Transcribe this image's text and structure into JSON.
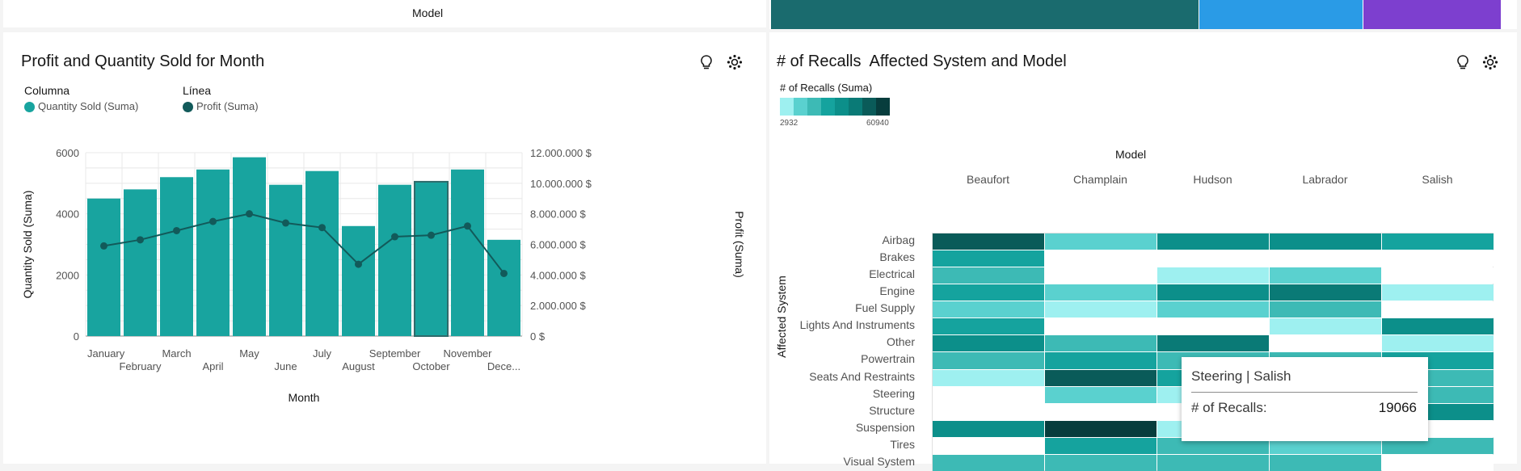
{
  "top": {
    "model_axis_label": "Model",
    "strip_colors": [
      "#1a6b6e",
      "#2a9be6",
      "#7d3fcf"
    ]
  },
  "left_panel": {
    "title": "Profit and Quantity Sold for Month",
    "icons": [
      "lightbulb-icon",
      "settings-icon"
    ],
    "legend": {
      "column_heading": "Columna",
      "column_item": "Quantity Sold (Suma)",
      "line_heading": "Línea",
      "line_item": "Profit (Suma)"
    },
    "colors": {
      "bar": "#18a49f",
      "line": "#125a5a",
      "selected_bar_outline": "#2e6b6b"
    }
  },
  "chart_data": [
    {
      "type": "bar+line",
      "title": "Profit and Quantity Sold for Month",
      "xlabel": "Month",
      "ylabel": "Quantity Sold (Suma)",
      "y2label": "Profit (Suma)",
      "categories": [
        "January",
        "February",
        "March",
        "April",
        "May",
        "June",
        "July",
        "August",
        "September",
        "October",
        "November",
        "Dece..."
      ],
      "ylim": [
        0,
        6000
      ],
      "y_ticks": [
        "0",
        "2000",
        "4000",
        "6000"
      ],
      "y2lim": [
        0,
        12000000
      ],
      "y2_ticks": [
        "0 $",
        "2.000.000 $",
        "4.000.000 $",
        "6.000.000 $",
        "8.000.000 $",
        "10.000.000 $",
        "12.000.000 $"
      ],
      "grid": true,
      "series": [
        {
          "name": "Quantity Sold (Suma)",
          "type": "bar",
          "values": [
            4500,
            4800,
            5200,
            5450,
            5850,
            4950,
            5400,
            3600,
            4950,
            5050,
            5450,
            3150
          ]
        },
        {
          "name": "Profit (Suma)",
          "type": "line",
          "values": [
            5900000,
            6300000,
            6900000,
            7500000,
            8000000,
            7400000,
            7100000,
            4700000,
            6500000,
            6600000,
            7200000,
            4100000
          ]
        }
      ],
      "selected_category": "October"
    },
    {
      "type": "heatmap",
      "title": "# of Recalls  Affected System and Model",
      "xlabel": "Model",
      "ylabel": "Affected System",
      "x": [
        "Beaufort",
        "Champlain",
        "Hudson",
        "Labrador",
        "Salish"
      ],
      "y": [
        "Airbag",
        "Brakes",
        "Electrical",
        "Engine",
        "Fuel Supply",
        "Lights And Instruments",
        "Other",
        "Powertrain",
        "Seats And Restraints",
        "Steering",
        "Structure",
        "Suspension",
        "Tires",
        "Visual System"
      ],
      "levels": [
        [
          7,
          2,
          5,
          5,
          4
        ],
        [
          4,
          0,
          0,
          0,
          0
        ],
        [
          3,
          0,
          1,
          2,
          0
        ],
        [
          4,
          2,
          5,
          6,
          1
        ],
        [
          2,
          1,
          2,
          3,
          0
        ],
        [
          4,
          0,
          0,
          1,
          5
        ],
        [
          5,
          3,
          6,
          0,
          1
        ],
        [
          3,
          4,
          3,
          3,
          4
        ],
        [
          1,
          7,
          4,
          3,
          3
        ],
        [
          0,
          2,
          1,
          2,
          3
        ],
        [
          0,
          0,
          0,
          0,
          5
        ],
        [
          5,
          8,
          1,
          0,
          0
        ],
        [
          0,
          4,
          3,
          2,
          3
        ],
        [
          3,
          3,
          3,
          3,
          0
        ]
      ],
      "legend": {
        "title": "# of Recalls (Suma)",
        "min": "2932",
        "max": "60940",
        "palette": [
          "#ffffff",
          "#9ef0f0",
          "#5ad1cf",
          "#3dbab5",
          "#15a39e",
          "#0c8f8a",
          "#0a7a76",
          "#0a5b59",
          "#073d3d"
        ]
      },
      "tooltip": {
        "title": "Steering | Salish",
        "label": "# of Recalls:",
        "value": "19066"
      }
    }
  ]
}
